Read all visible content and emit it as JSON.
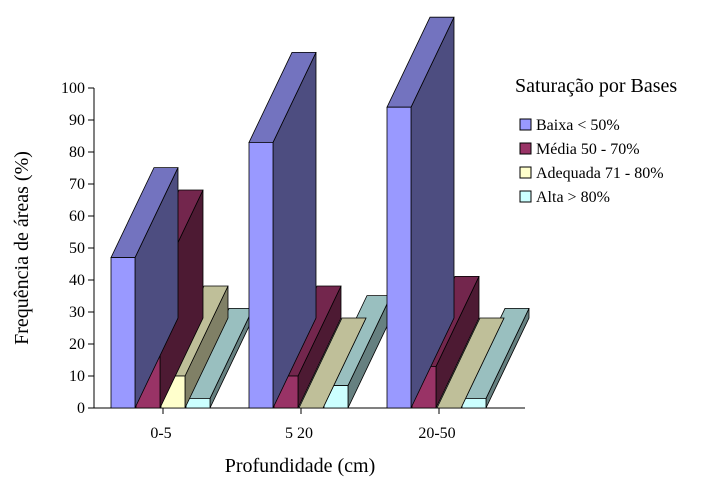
{
  "chart_data": {
    "type": "bar",
    "title": "",
    "xlabel": "Profundidade (cm)",
    "ylabel": "Frequência de áreas (%)",
    "ylim": [
      0,
      100
    ],
    "yticks": [
      "0",
      "10",
      "20",
      "30",
      "40",
      "50",
      "60",
      "70",
      "80",
      "90",
      "100"
    ],
    "categories": [
      "0-5",
      "5 20",
      "20-50"
    ],
    "legend_title": "Saturação por Bases",
    "legend_position": "top-right",
    "three_d": true,
    "series": [
      {
        "name": "Baixa < 50%",
        "values": [
          47,
          83,
          94
        ],
        "color": "#9999ff"
      },
      {
        "name": "Média 50 - 70%",
        "values": [
          40,
          10,
          13
        ],
        "color": "#993366"
      },
      {
        "name": "Adequada 71 - 80%",
        "values": [
          10,
          0,
          0
        ],
        "color": "#ffffcc"
      },
      {
        "name": "Alta > 80%",
        "values": [
          3,
          7,
          3
        ],
        "color": "#ccffff"
      }
    ]
  }
}
